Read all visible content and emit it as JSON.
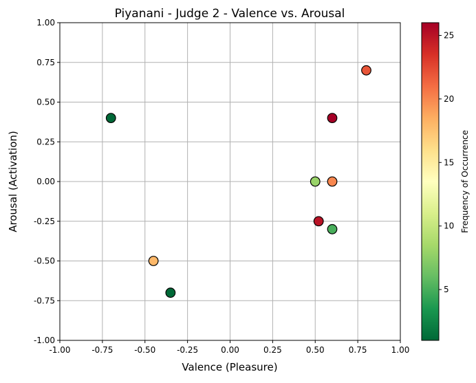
{
  "chart_data": {
    "type": "scatter",
    "title": "Piyanani - Judge 2 - Valence vs. Arousal",
    "xlabel": "Valence (Pleasure)",
    "ylabel": "Arousal (Activation)",
    "xlim": [
      -1.0,
      1.0
    ],
    "ylim": [
      -1.0,
      1.0
    ],
    "xticks": [
      "-1.00",
      "-0.75",
      "-0.50",
      "-0.25",
      "0.00",
      "0.25",
      "0.50",
      "0.75",
      "1.00"
    ],
    "yticks": [
      "-1.00",
      "-0.75",
      "-0.50",
      "-0.25",
      "0.00",
      "0.25",
      "0.50",
      "0.75",
      "1.00"
    ],
    "grid": true,
    "colormap": "RdYlGn_r",
    "colorbar": {
      "label": "Frequency of Occurrence",
      "min": 1,
      "max": 26,
      "ticks": [
        "5",
        "10",
        "15",
        "20",
        "25"
      ]
    },
    "points": [
      {
        "x": -0.7,
        "y": 0.4,
        "frequency": 1
      },
      {
        "x": -0.35,
        "y": -0.7,
        "frequency": 1
      },
      {
        "x": -0.45,
        "y": -0.5,
        "frequency": 18
      },
      {
        "x": 0.5,
        "y": 0.0,
        "frequency": 8
      },
      {
        "x": 0.6,
        "y": -0.3,
        "frequency": 5
      },
      {
        "x": 0.6,
        "y": 0.0,
        "frequency": 20
      },
      {
        "x": 0.8,
        "y": 0.7,
        "frequency": 22
      },
      {
        "x": 0.6,
        "y": 0.4,
        "frequency": 26
      },
      {
        "x": 0.52,
        "y": -0.25,
        "frequency": 25
      }
    ]
  }
}
